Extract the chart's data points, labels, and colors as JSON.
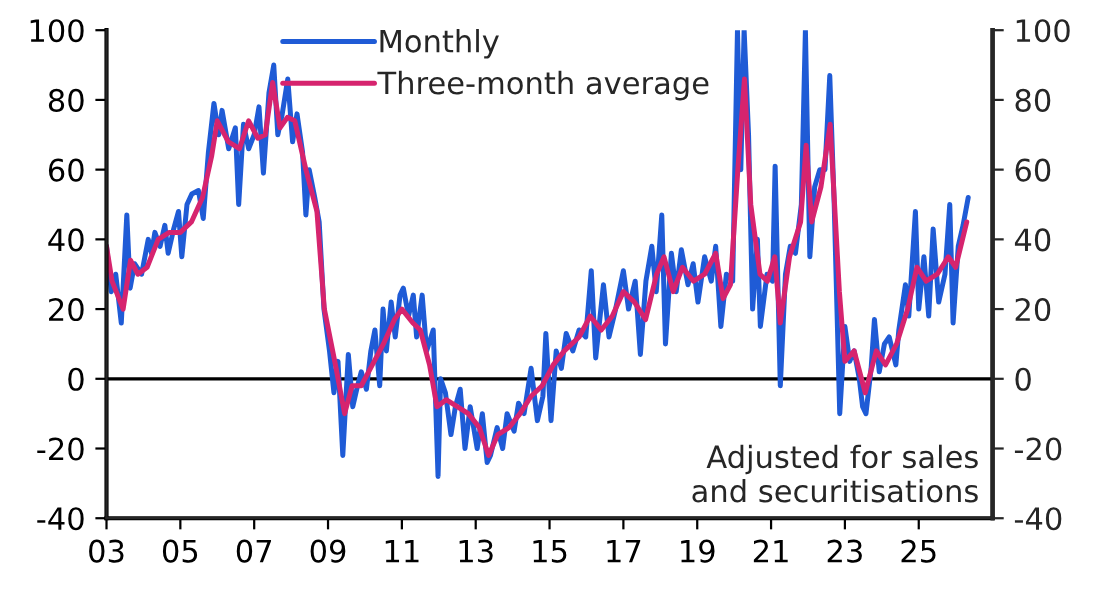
{
  "chart_data": {
    "type": "line",
    "xlim": [
      2003,
      2027
    ],
    "xticks": [
      {
        "value": 2003,
        "label": "03"
      },
      {
        "value": 2005,
        "label": "05"
      },
      {
        "value": 2007,
        "label": "07"
      },
      {
        "value": 2009,
        "label": "09"
      },
      {
        "value": 2011,
        "label": "11"
      },
      {
        "value": 2013,
        "label": "13"
      },
      {
        "value": 2015,
        "label": "15"
      },
      {
        "value": 2017,
        "label": "17"
      },
      {
        "value": 2019,
        "label": "19"
      },
      {
        "value": 2021,
        "label": "21"
      },
      {
        "value": 2023,
        "label": "23"
      },
      {
        "value": 2025,
        "label": "25"
      }
    ],
    "ylim": [
      -40,
      100
    ],
    "yticks": [
      -40,
      -20,
      0,
      20,
      40,
      60,
      80,
      100
    ],
    "y2lim": [
      -40,
      100
    ],
    "y2ticks": [
      -40,
      -20,
      0,
      20,
      40,
      60,
      80,
      100
    ],
    "grid": false,
    "legend": "top",
    "marker": "none",
    "line_style": "solid",
    "ref_lines": [
      {
        "axis": "y",
        "value": 0,
        "label": null,
        "color": "#000000"
      }
    ],
    "annotations": [
      "Adjusted for sales\nand securitisations"
    ],
    "series": [
      {
        "name": "Monthly",
        "color": "#1f5bd6",
        "x": [
          2003.0,
          2003.13,
          2003.25,
          2003.4,
          2003.55,
          2003.64,
          2003.76,
          2003.95,
          2004.13,
          2004.22,
          2004.31,
          2004.45,
          2004.58,
          2004.67,
          2004.82,
          2004.95,
          2005.04,
          2005.18,
          2005.31,
          2005.49,
          2005.62,
          2005.76,
          2005.91,
          2006.04,
          2006.13,
          2006.31,
          2006.49,
          2006.58,
          2006.71,
          2006.85,
          2007.0,
          2007.13,
          2007.25,
          2007.4,
          2007.53,
          2007.64,
          2007.76,
          2007.91,
          2008.04,
          2008.16,
          2008.31,
          2008.4,
          2008.49,
          2008.64,
          2008.76,
          2008.89,
          2009.04,
          2009.16,
          2009.27,
          2009.4,
          2009.55,
          2009.67,
          2009.8,
          2009.9,
          2010.04,
          2010.16,
          2010.27,
          2010.4,
          2010.49,
          2010.58,
          2010.71,
          2010.82,
          2010.95,
          2011.04,
          2011.18,
          2011.31,
          2011.4,
          2011.55,
          2011.67,
          2011.85,
          2011.98,
          2012.05,
          2012.18,
          2012.33,
          2012.45,
          2012.58,
          2012.71,
          2012.85,
          2013.04,
          2013.18,
          2013.31,
          2013.4,
          2013.58,
          2013.73,
          2013.85,
          2014.04,
          2014.16,
          2014.31,
          2014.5,
          2014.67,
          2014.82,
          2014.9,
          2015.04,
          2015.18,
          2015.32,
          2015.45,
          2015.63,
          2015.8,
          2015.98,
          2016.13,
          2016.25,
          2016.46,
          2016.61,
          2016.79,
          2017.0,
          2017.14,
          2017.32,
          2017.46,
          2017.61,
          2017.77,
          2017.89,
          2018.04,
          2018.14,
          2018.3,
          2018.43,
          2018.57,
          2018.75,
          2018.89,
          2019.02,
          2019.2,
          2019.38,
          2019.5,
          2019.64,
          2019.79,
          2019.96,
          2020.09,
          2020.18,
          2020.27,
          2020.39,
          2020.5,
          2020.63,
          2020.71,
          2020.89,
          2021.04,
          2021.11,
          2021.25,
          2021.39,
          2021.52,
          2021.66,
          2021.82,
          2021.93,
          2022.05,
          2022.18,
          2022.32,
          2022.46,
          2022.59,
          2022.71,
          2022.86,
          2023.0,
          2023.13,
          2023.25,
          2023.39,
          2023.48,
          2023.57,
          2023.71,
          2023.8,
          2023.93,
          2024.07,
          2024.2,
          2024.38,
          2024.46,
          2024.64,
          2024.73,
          2024.91,
          2025.0,
          2025.14,
          2025.27,
          2025.39,
          2025.54,
          2025.71,
          2025.84,
          2025.93,
          2026.07,
          2026.2,
          2026.34
        ],
        "values": [
          38,
          25,
          30,
          16,
          47,
          26,
          33,
          30,
          40,
          36,
          42,
          38,
          44,
          36,
          43,
          48,
          35,
          50,
          53,
          54,
          46,
          65,
          79,
          70,
          77,
          66,
          72,
          50,
          73,
          66,
          70,
          78,
          59,
          82,
          90,
          70,
          76,
          86,
          68,
          76,
          65,
          47,
          60,
          52,
          45,
          20,
          8,
          -4,
          5,
          -22,
          7,
          -8,
          -2,
          2,
          -3,
          8,
          14,
          -2,
          20,
          8,
          22,
          12,
          24,
          26,
          18,
          24,
          12,
          24,
          8,
          14,
          -28,
          0,
          -4,
          -16,
          -8,
          -3,
          -20,
          -8,
          -20,
          -10,
          -24,
          -22,
          -14,
          -20,
          -10,
          -15,
          -7,
          -10,
          3,
          -12,
          -5,
          13,
          -12,
          8,
          3,
          13,
          8,
          14,
          12,
          31,
          6,
          27,
          12,
          20,
          31,
          20,
          28,
          7,
          28,
          38,
          25,
          47,
          10,
          36,
          25,
          37,
          27,
          33,
          22,
          35,
          28,
          38,
          15,
          30,
          28,
          100,
          60,
          100,
          70,
          20,
          40,
          15,
          30,
          28,
          61,
          -2,
          30,
          38,
          36,
          50,
          100,
          35,
          55,
          60,
          60,
          87,
          50,
          -10,
          15,
          5,
          8,
          0,
          -8,
          -10,
          3,
          17,
          2,
          10,
          12,
          4,
          14,
          27,
          18,
          48,
          20,
          35,
          18,
          43,
          22,
          30,
          50,
          16,
          38,
          44,
          52
        ]
      },
      {
        "name": "Three-month average",
        "color": "#d6246e",
        "x": [
          2003.0,
          2003.15,
          2003.45,
          2003.65,
          2003.85,
          2004.1,
          2004.4,
          2004.7,
          2005.0,
          2005.3,
          2005.6,
          2005.85,
          2006.0,
          2006.3,
          2006.6,
          2006.85,
          2007.1,
          2007.3,
          2007.5,
          2007.7,
          2007.9,
          2008.1,
          2008.4,
          2008.7,
          2008.9,
          2009.2,
          2009.45,
          2009.65,
          2009.9,
          2010.2,
          2010.5,
          2010.8,
          2011.0,
          2011.3,
          2011.5,
          2011.75,
          2011.95,
          2012.2,
          2012.5,
          2012.8,
          2013.1,
          2013.35,
          2013.6,
          2013.9,
          2014.2,
          2014.5,
          2014.8,
          2015.1,
          2015.4,
          2015.8,
          2016.1,
          2016.4,
          2016.7,
          2017.0,
          2017.3,
          2017.6,
          2017.9,
          2018.1,
          2018.35,
          2018.6,
          2018.9,
          2019.2,
          2019.5,
          2019.7,
          2019.9,
          2020.1,
          2020.28,
          2020.45,
          2020.7,
          2020.9,
          2021.1,
          2021.25,
          2021.5,
          2021.8,
          2021.95,
          2022.1,
          2022.35,
          2022.6,
          2022.85,
          2023.0,
          2023.25,
          2023.55,
          2023.85,
          2024.1,
          2024.4,
          2024.7,
          2024.95,
          2025.2,
          2025.5,
          2025.8,
          2026.0,
          2026.3
        ],
        "values": [
          38,
          28,
          20,
          34,
          30,
          32,
          40,
          42,
          42,
          45,
          52,
          64,
          74,
          68,
          66,
          74,
          69,
          70,
          85,
          72,
          75,
          74,
          60,
          48,
          20,
          4,
          -10,
          -2,
          -2,
          4,
          10,
          17,
          20,
          16,
          14,
          4,
          -8,
          -6,
          -8,
          -10,
          -14,
          -22,
          -16,
          -14,
          -10,
          -5,
          -2,
          4,
          8,
          12,
          18,
          14,
          18,
          25,
          22,
          17,
          30,
          35,
          25,
          32,
          28,
          30,
          36,
          23,
          27,
          60,
          86,
          50,
          30,
          28,
          35,
          16,
          35,
          45,
          67,
          45,
          55,
          73,
          25,
          5,
          8,
          -4,
          8,
          4,
          10,
          20,
          32,
          28,
          30,
          35,
          32,
          45
        ]
      }
    ]
  }
}
